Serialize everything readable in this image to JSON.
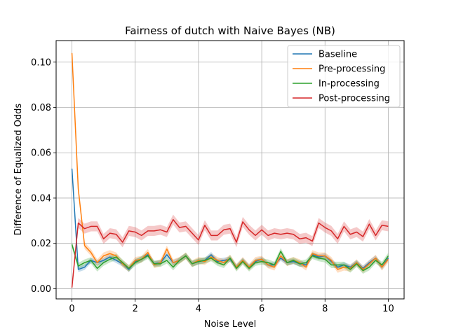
{
  "chart_data": {
    "type": "line",
    "title": "Fairness of dutch with Naive Bayes (NB)",
    "xlabel": "Noise Level",
    "ylabel": "Difference of Equalized Odds",
    "xlim": [
      -0.5,
      10.5
    ],
    "ylim": [
      -0.0045,
      0.1095
    ],
    "xticks": [
      0,
      2,
      4,
      6,
      8,
      10
    ],
    "xtick_labels": [
      "0",
      "2",
      "4",
      "6",
      "8",
      "10"
    ],
    "yticks": [
      0.0,
      0.02,
      0.04,
      0.06,
      0.08,
      0.1
    ],
    "ytick_labels": [
      "0.00",
      "0.02",
      "0.04",
      "0.06",
      "0.08",
      "0.10"
    ],
    "grid": true,
    "legend_position": "top-right",
    "x": [
      0,
      0.2,
      0.4,
      0.6,
      0.8,
      1.0,
      1.2,
      1.4,
      1.6,
      1.8,
      2.0,
      2.2,
      2.4,
      2.6,
      2.8,
      3.0,
      3.2,
      3.4,
      3.6,
      3.8,
      4.0,
      4.2,
      4.4,
      4.6,
      4.8,
      5.0,
      5.2,
      5.4,
      5.6,
      5.8,
      6.0,
      6.2,
      6.4,
      6.6,
      6.8,
      7.0,
      7.2,
      7.4,
      7.6,
      7.8,
      8.0,
      8.2,
      8.4,
      8.6,
      8.8,
      9.0,
      9.2,
      9.4,
      9.6,
      9.8,
      10.0
    ],
    "series": [
      {
        "name": "Baseline",
        "color": "#1f77b4",
        "band": 0.0012,
        "values": [
          0.053,
          0.0085,
          0.0095,
          0.0125,
          0.0115,
          0.0125,
          0.014,
          0.0125,
          0.011,
          0.0085,
          0.012,
          0.013,
          0.015,
          0.011,
          0.0115,
          0.015,
          0.0115,
          0.0125,
          0.0145,
          0.011,
          0.012,
          0.0125,
          0.015,
          0.012,
          0.0125,
          0.013,
          0.0095,
          0.0125,
          0.0095,
          0.012,
          0.013,
          0.0105,
          0.0105,
          0.0135,
          0.0115,
          0.012,
          0.011,
          0.0105,
          0.015,
          0.014,
          0.0145,
          0.012,
          0.0095,
          0.0105,
          0.0095,
          0.0115,
          0.009,
          0.0115,
          0.0135,
          0.0095,
          0.0135
        ]
      },
      {
        "name": "Pre-processing",
        "color": "#ff7f0e",
        "band": 0.0015,
        "values": [
          0.104,
          0.044,
          0.019,
          0.016,
          0.0115,
          0.0145,
          0.0155,
          0.0145,
          0.011,
          0.009,
          0.0125,
          0.013,
          0.016,
          0.0105,
          0.0115,
          0.0175,
          0.0115,
          0.0125,
          0.0145,
          0.011,
          0.0125,
          0.012,
          0.014,
          0.0125,
          0.0115,
          0.0135,
          0.0095,
          0.0125,
          0.0095,
          0.0125,
          0.013,
          0.0105,
          0.0095,
          0.0145,
          0.0115,
          0.0125,
          0.0115,
          0.0095,
          0.0155,
          0.0145,
          0.0145,
          0.0125,
          0.0085,
          0.0095,
          0.009,
          0.0115,
          0.0085,
          0.011,
          0.0135,
          0.0095,
          0.013
        ]
      },
      {
        "name": "In-processing",
        "color": "#2ca02c",
        "band": 0.0014,
        "values": [
          0.0195,
          0.01,
          0.0115,
          0.0125,
          0.009,
          0.0115,
          0.013,
          0.014,
          0.0115,
          0.009,
          0.0115,
          0.013,
          0.0145,
          0.011,
          0.011,
          0.0125,
          0.0095,
          0.0125,
          0.0145,
          0.011,
          0.012,
          0.0125,
          0.0135,
          0.0115,
          0.0105,
          0.0135,
          0.009,
          0.012,
          0.009,
          0.0115,
          0.012,
          0.0115,
          0.0105,
          0.0165,
          0.0115,
          0.0125,
          0.011,
          0.0115,
          0.0145,
          0.0135,
          0.013,
          0.0105,
          0.0105,
          0.0105,
          0.0085,
          0.011,
          0.008,
          0.0095,
          0.0125,
          0.0105,
          0.0145
        ]
      },
      {
        "name": "Post-processing",
        "color": "#d62728",
        "band": 0.0022,
        "values": [
          0.0005,
          0.029,
          0.0265,
          0.0275,
          0.0275,
          0.022,
          0.0245,
          0.024,
          0.0205,
          0.0255,
          0.025,
          0.0235,
          0.0255,
          0.0255,
          0.026,
          0.025,
          0.0305,
          0.027,
          0.0275,
          0.0245,
          0.0215,
          0.028,
          0.0235,
          0.0235,
          0.026,
          0.0265,
          0.0205,
          0.0295,
          0.026,
          0.0235,
          0.026,
          0.0235,
          0.0245,
          0.024,
          0.0245,
          0.024,
          0.022,
          0.0225,
          0.021,
          0.029,
          0.027,
          0.0255,
          0.022,
          0.0275,
          0.024,
          0.025,
          0.023,
          0.0285,
          0.0235,
          0.028,
          0.0275
        ]
      }
    ]
  }
}
